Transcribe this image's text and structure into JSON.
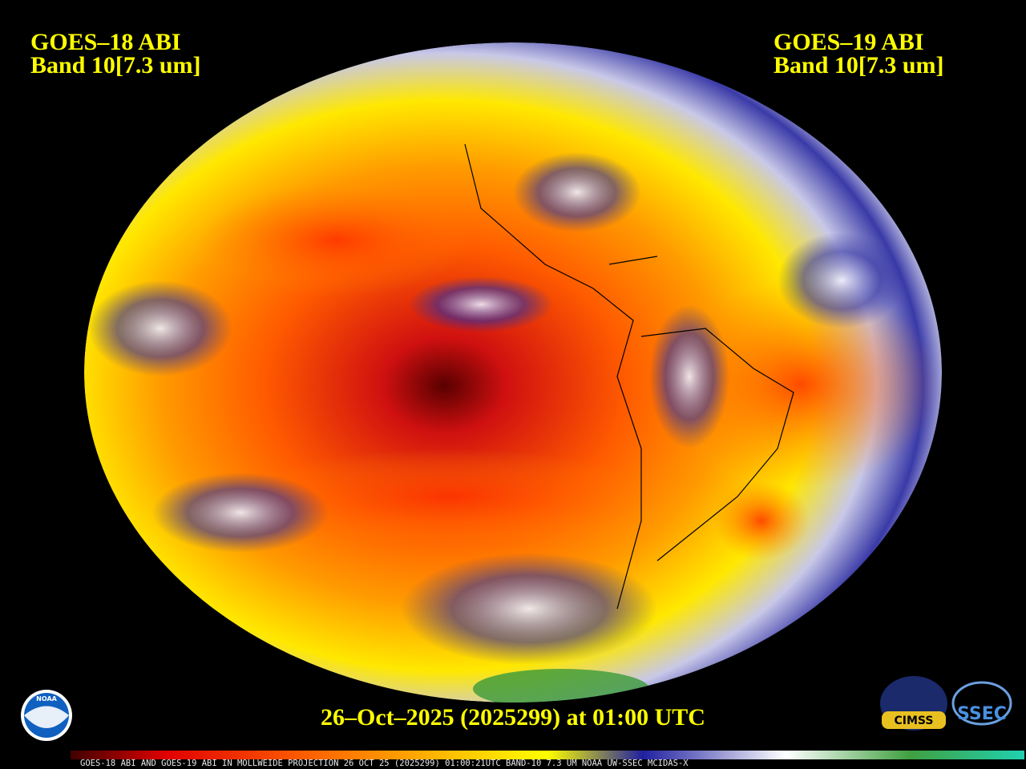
{
  "header": {
    "left": {
      "satellite": "GOES–18 ABI",
      "band": "Band 10[7.3 um]"
    },
    "right": {
      "satellite": "GOES–19 ABI",
      "band": "Band 10[7.3 um]"
    }
  },
  "timestamp": "26–Oct–2025 (2025299) at 01:00 UTC",
  "logos": {
    "noaa": "NOAA",
    "cimss": "CIMSS",
    "ssec": "SSEC"
  },
  "colorbar_caption": "GOES-18 ABI AND GOES-19 ABI IN MOLLWEIDE PROJECTION 26 OCT 25 (2025299) 01:00:21UTC BAND-10 7.3 UM NOAA UW-SSEC MCIDAS-X"
}
